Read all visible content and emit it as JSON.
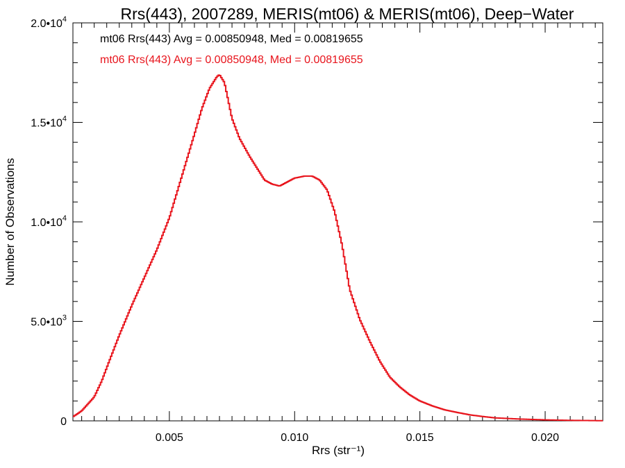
{
  "chart_data": {
    "type": "histogram-step",
    "title": "Rrs(443), 2007289, MERIS(mt06) & MERIS(mt06), Deep−Water",
    "xlabel": "Rrs (str⁻¹)",
    "ylabel": "Number of Observations",
    "xlim": [
      0.00115,
      0.0223
    ],
    "ylim": [
      0,
      20000
    ],
    "x_ticks": [
      {
        "value": 0.005,
        "label": "0.005"
      },
      {
        "value": 0.01,
        "label": "0.010"
      },
      {
        "value": 0.015,
        "label": "0.015"
      },
      {
        "value": 0.02,
        "label": "0.020"
      }
    ],
    "y_ticks": [
      {
        "value": 0,
        "label": "0",
        "exp": ""
      },
      {
        "value": 5000,
        "label": "5.0•10",
        "exp": "3"
      },
      {
        "value": 10000,
        "label": "1.0•10",
        "exp": "4"
      },
      {
        "value": 15000,
        "label": "1.5•10",
        "exp": "4"
      },
      {
        "value": 20000,
        "label": "2.0•10",
        "exp": "4"
      }
    ],
    "annotations": [
      {
        "text": "mt06 Rrs(443) Avg = 0.00850948, Med = 0.00819655",
        "color": "#000000"
      },
      {
        "text": "mt06 Rrs(443) Avg = 0.00850948, Med = 0.00819655",
        "color": "#e8141c"
      }
    ],
    "series": [
      {
        "color": "#e8141c",
        "x": [
          0.00115,
          0.0015,
          0.002,
          0.0023,
          0.0026,
          0.003,
          0.0035,
          0.004,
          0.0045,
          0.005,
          0.0055,
          0.006,
          0.0063,
          0.0066,
          0.0069,
          0.007,
          0.0072,
          0.0075,
          0.0078,
          0.0082,
          0.0085,
          0.0088,
          0.0091,
          0.0094,
          0.0097,
          0.01,
          0.0104,
          0.0107,
          0.011,
          0.0113,
          0.0116,
          0.0119,
          0.0122,
          0.0126,
          0.013,
          0.0134,
          0.0138,
          0.0142,
          0.0146,
          0.015,
          0.0155,
          0.016,
          0.0165,
          0.017,
          0.0175,
          0.018,
          0.019,
          0.02,
          0.021,
          0.0223
        ],
        "y": [
          200,
          500,
          1200,
          2000,
          3000,
          4300,
          5800,
          7200,
          8600,
          10200,
          12300,
          14400,
          15700,
          16700,
          17300,
          17400,
          17000,
          15200,
          14200,
          13300,
          12700,
          12100,
          11900,
          11800,
          12000,
          12200,
          12300,
          12300,
          12100,
          11600,
          10500,
          8800,
          6600,
          5100,
          4000,
          3000,
          2200,
          1700,
          1300,
          1000,
          750,
          550,
          420,
          300,
          220,
          150,
          90,
          50,
          25,
          8
        ]
      }
    ]
  }
}
